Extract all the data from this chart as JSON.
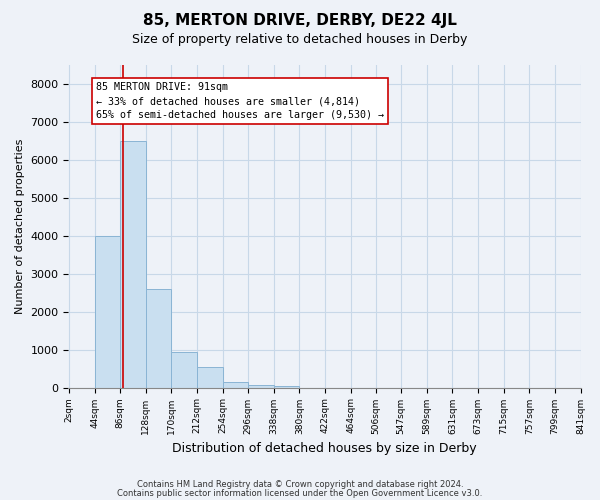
{
  "title": "85, MERTON DRIVE, DERBY, DE22 4JL",
  "subtitle": "Size of property relative to detached houses in Derby",
  "xlabel": "Distribution of detached houses by size in Derby",
  "ylabel": "Number of detached properties",
  "bin_edges": [
    2,
    44,
    86,
    128,
    170,
    212,
    254,
    296,
    338,
    380,
    422,
    464,
    506,
    547,
    589,
    631,
    673,
    715,
    757,
    799,
    841
  ],
  "bar_heights": [
    0,
    4000,
    6500,
    2600,
    950,
    550,
    150,
    80,
    30,
    0,
    0,
    0,
    0,
    0,
    0,
    0,
    0,
    0,
    0,
    0
  ],
  "bar_color": "#c9dff0",
  "bar_edge_color": "#8ab4d4",
  "property_size": 91,
  "property_line_color": "#cc0000",
  "annotation_text": "85 MERTON DRIVE: 91sqm\n← 33% of detached houses are smaller (4,814)\n65% of semi-detached houses are larger (9,530) →",
  "annotation_box_color": "#ffffff",
  "annotation_box_edge_color": "#cc0000",
  "ylim": [
    0,
    8500
  ],
  "yticks": [
    0,
    1000,
    2000,
    3000,
    4000,
    5000,
    6000,
    7000,
    8000
  ],
  "grid_color": "#c8d8e8",
  "footer_line1": "Contains HM Land Registry data © Crown copyright and database right 2024.",
  "footer_line2": "Contains public sector information licensed under the Open Government Licence v3.0.",
  "bg_color": "#eef2f8"
}
